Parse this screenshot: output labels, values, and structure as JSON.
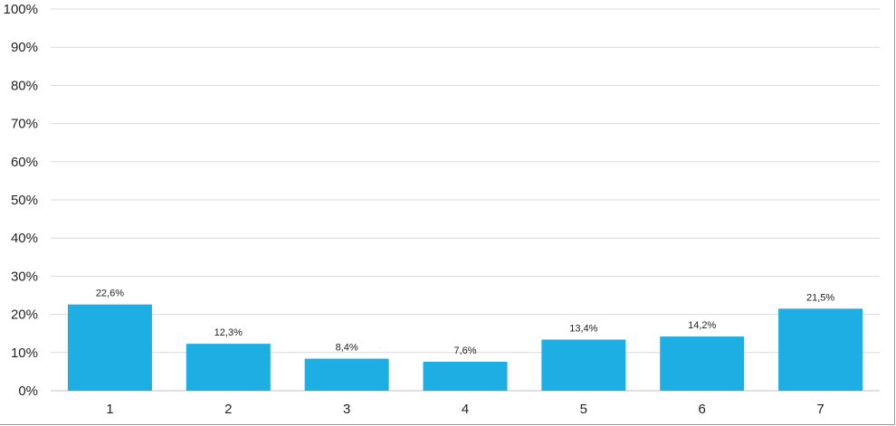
{
  "chart_data": {
    "type": "bar",
    "title": "",
    "xlabel": "",
    "ylabel": "",
    "categories": [
      "1",
      "2",
      "3",
      "4",
      "5",
      "6",
      "7"
    ],
    "values": [
      22.6,
      12.3,
      8.4,
      7.6,
      13.4,
      14.2,
      21.5
    ],
    "data_labels": [
      "22,6%",
      "12,3%",
      "8,4%",
      "7,6%",
      "13,4%",
      "14,2%",
      "21,5%"
    ],
    "ylim": [
      0,
      100
    ],
    "yticks": [
      0,
      10,
      20,
      30,
      40,
      50,
      60,
      70,
      80,
      90,
      100
    ],
    "ytick_labels": [
      "0%",
      "10%",
      "20%",
      "30%",
      "40%",
      "50%",
      "60%",
      "70%",
      "80%",
      "90%",
      "100%"
    ],
    "grid": true,
    "bar_color": "#1DAEE3",
    "grid_color": "#D9D9D9",
    "legend": "none"
  }
}
